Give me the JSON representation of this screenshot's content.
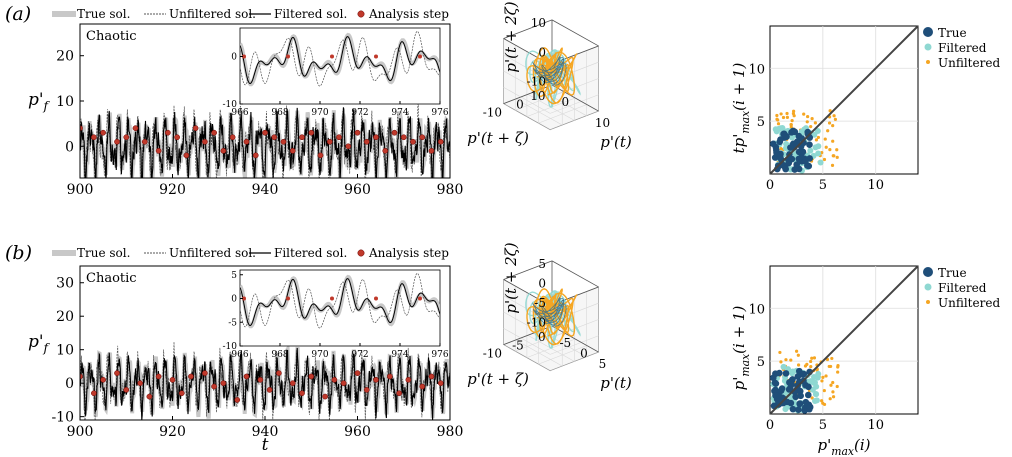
{
  "figure": {
    "rows": [
      {
        "panel_label": "(a)",
        "legend": {
          "items": [
            {
              "label": "True sol.",
              "style": "thick-grey"
            },
            {
              "label": "Unfiltered sol.",
              "style": "dashed"
            },
            {
              "label": "Filtered sol.",
              "style": "solid"
            },
            {
              "label": "Analysis step",
              "style": "red-dot"
            }
          ]
        },
        "timeseries": {
          "regime_label": "Chaotic",
          "ylabel": "p'_f",
          "xlabel": "",
          "xticks": [
            "900",
            "920",
            "940",
            "960",
            "980"
          ],
          "yticks": [
            "0",
            "10",
            "20"
          ],
          "inset_xticks": [
            "966",
            "968",
            "970",
            "972",
            "974",
            "976"
          ],
          "inset_yticks": [
            "0",
            "-10"
          ]
        },
        "phase3d": {
          "zlabel": "p'(t + 2ζ)",
          "ylabel": "p'(t + ζ)",
          "xlabel": "p'(t)",
          "zticks": [
            "10",
            "0",
            "-10"
          ],
          "yticks": [
            "10",
            "0",
            "-10"
          ],
          "xticks": [
            "0",
            "10"
          ]
        },
        "scatter": {
          "ylabel": "tp'_max(i + 1)",
          "xlabel": "",
          "xticks": [
            "0",
            "5",
            "10"
          ],
          "yticks": [
            "5",
            "10"
          ],
          "legend": [
            "True",
            "Filtered",
            "Unfiltered"
          ]
        }
      },
      {
        "panel_label": "(b)",
        "legend": {
          "items": [
            {
              "label": "True sol.",
              "style": "thick-grey"
            },
            {
              "label": "Unfiltered sol.",
              "style": "dashed"
            },
            {
              "label": "Filtered sol.",
              "style": "solid"
            },
            {
              "label": "Analysis step",
              "style": "red-dot"
            }
          ]
        },
        "timeseries": {
          "regime_label": "Chaotic",
          "ylabel": "p'_f",
          "xlabel": "t",
          "xticks": [
            "900",
            "920",
            "940",
            "960",
            "980"
          ],
          "yticks": [
            "-10",
            "0",
            "10",
            "20",
            "30"
          ],
          "inset_xticks": [
            "966",
            "968",
            "970",
            "972",
            "974",
            "976"
          ],
          "inset_yticks": [
            "5",
            "0",
            "-5",
            "-10"
          ]
        },
        "phase3d": {
          "zlabel": "p'(t + 2ζ)",
          "ylabel": "p'(t + ζ)",
          "xlabel": "p'(t)",
          "zticks": [
            "5",
            "0",
            "-5",
            "-10"
          ],
          "yticks": [
            "0",
            "-5",
            "-10"
          ],
          "xticks": [
            "-5",
            "0",
            "5"
          ]
        },
        "scatter": {
          "ylabel": "p'_max(i + 1)",
          "xlabel": "p'_max(i)",
          "xticks": [
            "0",
            "5",
            "10"
          ],
          "yticks": [
            "5",
            "10"
          ],
          "legend": [
            "True",
            "Filtered",
            "Unfiltered"
          ]
        }
      }
    ],
    "colors": {
      "true": "#c8c8c8",
      "unfiltered": "#555555",
      "filtered": "#000000",
      "analysis": "#c0392b",
      "scatter_true": "#1f4e79",
      "scatter_filtered": "#8fd8d2",
      "scatter_unfiltered": "#f5a623",
      "phase_unfiltered": "#f5a623",
      "phase_filtered": "#8fd8d2"
    }
  },
  "chart_data": [
    {
      "type": "line",
      "panel": "(a) time series",
      "title": "",
      "annotation": "Chaotic",
      "xlabel": "",
      "ylabel": "p'_f",
      "xlim": [
        900,
        980
      ],
      "ylim": [
        -7,
        27
      ],
      "series": [
        {
          "name": "True sol."
        },
        {
          "name": "Unfiltered sol."
        },
        {
          "name": "Filtered sol."
        },
        {
          "name": "Analysis step",
          "x": [
            900,
            903,
            905,
            908,
            910,
            912,
            914,
            917,
            919,
            921,
            923,
            925,
            927,
            929,
            931,
            933,
            936,
            938,
            940,
            942,
            944,
            946,
            948,
            950,
            952,
            954,
            956,
            958,
            960,
            962,
            964,
            966,
            968,
            970,
            972,
            974,
            976,
            978
          ],
          "y": [
            4,
            2,
            3,
            1,
            2,
            4,
            1,
            -1,
            3,
            2,
            -2,
            4,
            1,
            3,
            -1,
            2,
            1,
            -2,
            3,
            2,
            1,
            -1,
            2,
            3,
            -2,
            1,
            2,
            0,
            3,
            1,
            2,
            -1,
            3,
            2,
            1,
            2,
            -1,
            1
          ]
        }
      ],
      "inset": {
        "xlim": [
          966,
          976
        ],
        "ylim": [
          -10,
          6
        ]
      }
    },
    {
      "type": "scatter",
      "panel": "(a) phase portrait",
      "xlabel": "p'(t)",
      "ylabel": "p'(t + ζ)",
      "zlabel": "p'(t + 2ζ)"
    },
    {
      "type": "scatter",
      "panel": "(a) return map",
      "xlabel": "",
      "ylabel": "tp'_max(i + 1)",
      "xlim": [
        0,
        14
      ],
      "ylim": [
        0,
        14
      ],
      "series": [
        {
          "name": "True"
        },
        {
          "name": "Filtered"
        },
        {
          "name": "Unfiltered"
        }
      ]
    },
    {
      "type": "line",
      "panel": "(b) time series",
      "annotation": "Chaotic",
      "xlabel": "t",
      "ylabel": "p'_f",
      "xlim": [
        900,
        980
      ],
      "ylim": [
        -11,
        35
      ],
      "series": [
        {
          "name": "True sol."
        },
        {
          "name": "Unfiltered sol."
        },
        {
          "name": "Filtered sol."
        },
        {
          "name": "Analysis step",
          "x": [
            900,
            903,
            905,
            908,
            910,
            913,
            915,
            917,
            920,
            922,
            924,
            927,
            929,
            931,
            934,
            936,
            939,
            941,
            943,
            946,
            948,
            950,
            953,
            955,
            957,
            960,
            962,
            964,
            967,
            969,
            971,
            974,
            976,
            978
          ],
          "y": [
            2,
            -3,
            1,
            3,
            -2,
            0,
            -4,
            2,
            1,
            -3,
            2,
            3,
            -1,
            0,
            -5,
            2,
            1,
            -2,
            3,
            0,
            -3,
            2,
            -4,
            1,
            0,
            3,
            -2,
            1,
            2,
            -3,
            1,
            -1,
            2,
            0
          ]
        }
      ],
      "inset": {
        "xlim": [
          966,
          976
        ],
        "ylim": [
          -10,
          6
        ]
      }
    },
    {
      "type": "scatter",
      "panel": "(b) phase portrait",
      "xlabel": "p'(t)",
      "ylabel": "p'(t + ζ)",
      "zlabel": "p'(t + 2ζ)"
    },
    {
      "type": "scatter",
      "panel": "(b) return map",
      "xlabel": "p'_max(i)",
      "ylabel": "p'_max(i + 1)",
      "xlim": [
        0,
        14
      ],
      "ylim": [
        0,
        14
      ],
      "series": [
        {
          "name": "True"
        },
        {
          "name": "Filtered"
        },
        {
          "name": "Unfiltered"
        }
      ]
    }
  ]
}
